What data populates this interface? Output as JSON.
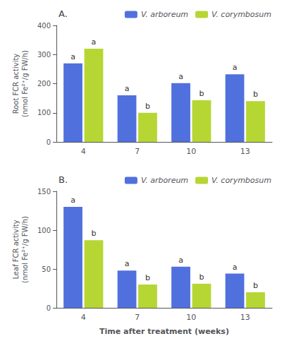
{
  "chart_data": [
    {
      "type": "bar",
      "title": "A.",
      "y_label": "Root FCR activity\n(nmol Fe²⁺/g FW/h)",
      "categories": [
        "4",
        "7",
        "10",
        "13"
      ],
      "series": [
        {
          "name": "V. arboreum",
          "values": [
            270,
            160,
            202,
            232
          ],
          "annotations": [
            "a",
            "a",
            "a",
            "a"
          ]
        },
        {
          "name": "V. corymbosum",
          "values": [
            320,
            100,
            143,
            140
          ],
          "annotations": [
            "a",
            "b",
            "b",
            "b"
          ]
        }
      ],
      "ylim": [
        0,
        400
      ],
      "yticks": [
        0,
        100,
        200,
        300,
        400
      ],
      "grid": false,
      "legend": "upper right"
    },
    {
      "type": "bar",
      "title": "B.",
      "y_label": "Leaf FCR activity\n(nmol Fe²⁺/g FW/h)",
      "x_label": "Time after treatment (weeks)",
      "categories": [
        "4",
        "7",
        "10",
        "13"
      ],
      "series": [
        {
          "name": "V. arboreum",
          "values": [
            130,
            48,
            53,
            44
          ],
          "annotations": [
            "a",
            "a",
            "a",
            "a"
          ]
        },
        {
          "name": "V. corymbosum",
          "values": [
            87,
            30,
            31,
            20
          ],
          "annotations": [
            "b",
            "b",
            "b",
            "b"
          ]
        }
      ],
      "ylim": [
        0,
        150
      ],
      "yticks": [
        0,
        50,
        100,
        150
      ],
      "grid": false,
      "legend": "upper right"
    }
  ]
}
